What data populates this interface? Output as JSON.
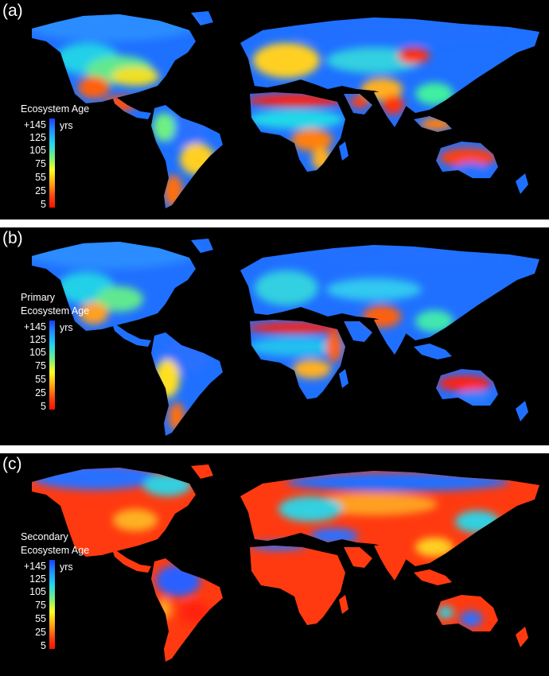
{
  "panels": [
    {
      "letter": "(a)",
      "legend_title": [
        "Ecosystem Age"
      ],
      "ticks": [
        "+145",
        "125",
        "105",
        "75",
        "55",
        "25",
        "5"
      ],
      "unit": "yrs"
    },
    {
      "letter": "(b)",
      "legend_title": [
        "Primary",
        "Ecosystem Age"
      ],
      "ticks": [
        "+145",
        "125",
        "105",
        "75",
        "55",
        "25",
        "5"
      ],
      "unit": "yrs"
    },
    {
      "letter": "(c)",
      "legend_title": [
        "Secondary",
        "Ecosystem Age"
      ],
      "ticks": [
        "+145",
        "125",
        "105",
        "75",
        "55",
        "25",
        "5"
      ],
      "unit": "yrs"
    }
  ],
  "colors": {
    "background": "#000000",
    "scale_old": "#1c3cff",
    "scale_mid": "#ffff20",
    "scale_young": "#ff1000"
  }
}
